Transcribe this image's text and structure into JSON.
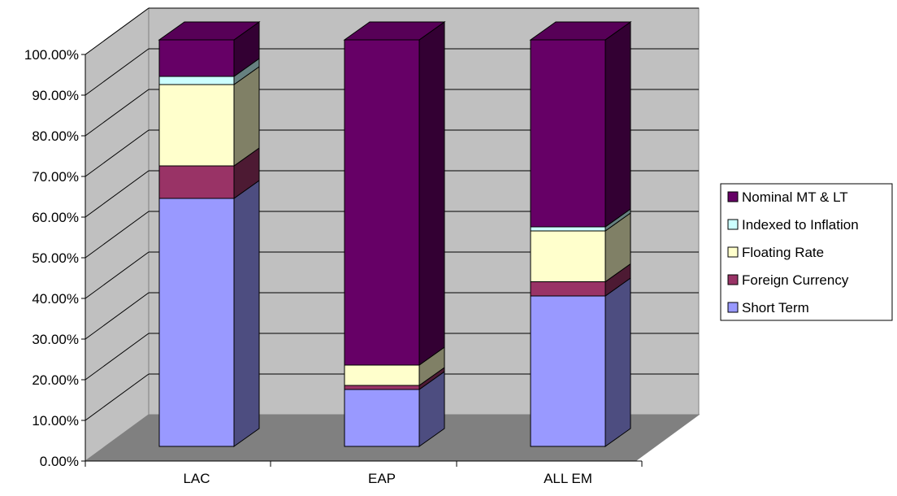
{
  "chart_data": {
    "type": "bar",
    "stacked": true,
    "percent": true,
    "three_d": true,
    "categories": [
      "LAC",
      "EAP",
      "ALL EM"
    ],
    "series": [
      {
        "name": "Short Term",
        "values": [
          61.0,
          14.0,
          37.0
        ],
        "color": "#9999ff"
      },
      {
        "name": "Foreign Currency",
        "values": [
          8.0,
          1.0,
          3.5
        ],
        "color": "#993366"
      },
      {
        "name": "Floating Rate",
        "values": [
          20.0,
          5.0,
          12.5
        ],
        "color": "#ffffcc"
      },
      {
        "name": "Indexed to Inflation",
        "values": [
          2.0,
          0.0,
          1.0
        ],
        "color": "#ccffff"
      },
      {
        "name": "Nominal MT & LT",
        "values": [
          9.0,
          80.0,
          46.0
        ],
        "color": "#660066"
      }
    ],
    "y_ticks": [
      "0.00%",
      "10.00%",
      "20.00%",
      "30.00%",
      "40.00%",
      "50.00%",
      "60.00%",
      "70.00%",
      "80.00%",
      "90.00%",
      "100.00%"
    ],
    "ylim": [
      0,
      100
    ],
    "grid": true,
    "legend_position": "right",
    "legend_order": [
      "Nominal MT & LT",
      "Indexed to Inflation",
      "Floating Rate",
      "Foreign Currency",
      "Short Term"
    ],
    "title": "",
    "xlabel": "",
    "ylabel": ""
  }
}
